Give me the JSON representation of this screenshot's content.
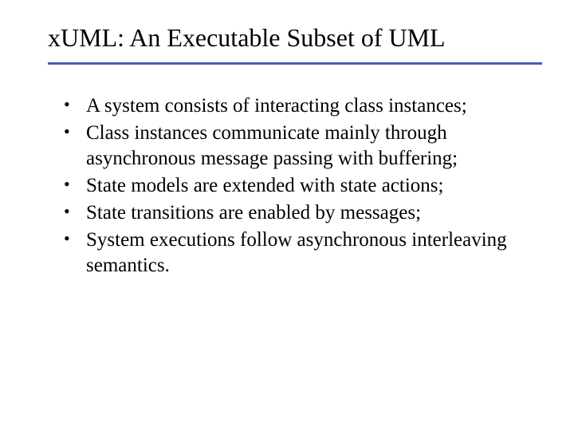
{
  "slide": {
    "title": "xUML: An Executable Subset of UML",
    "divider_color": "#4a5db0",
    "background_color": "#ffffff",
    "text_color": "#000000",
    "title_fontsize": 32,
    "bullet_fontsize": 25,
    "bullets": [
      "A system consists of interacting class instances;",
      "Class instances communicate mainly through asynchronous message passing with buffering;",
      "State models are extended with state actions;",
      "State transitions are enabled by messages;",
      "System executions follow asynchronous interleaving semantics."
    ]
  }
}
